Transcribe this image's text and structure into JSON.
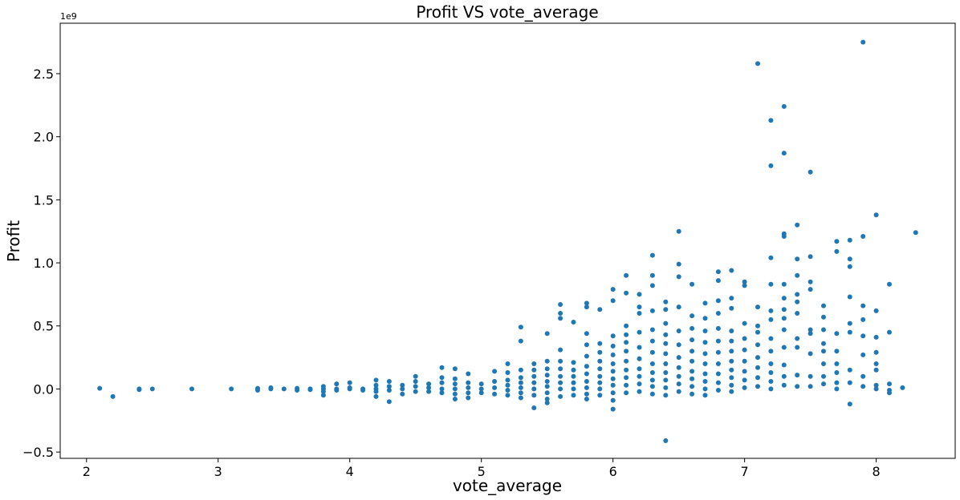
{
  "chart_data": {
    "type": "scatter",
    "title": "Profit VS vote_average",
    "xlabel": "vote_average",
    "ylabel": "Profit",
    "y_offset_label": "1e9",
    "xlim": [
      1.8,
      8.6
    ],
    "ylim": [
      -0.55,
      2.9
    ],
    "x_ticks": [
      2,
      3,
      4,
      5,
      6,
      7,
      8
    ],
    "x_tick_labels": [
      "2",
      "3",
      "4",
      "5",
      "6",
      "7",
      "8"
    ],
    "y_ticks": [
      -0.5,
      0.0,
      0.5,
      1.0,
      1.5,
      2.0,
      2.5
    ],
    "y_tick_labels": [
      "−0.5",
      "0.0",
      "0.5",
      "1.0",
      "1.5",
      "2.0",
      "2.5"
    ],
    "grid": false,
    "marker_color": "#1f77b4",
    "points": [
      [
        2.1,
        0.005
      ],
      [
        2.2,
        -0.06
      ],
      [
        2.4,
        -0.005
      ],
      [
        2.4,
        0.0
      ],
      [
        2.5,
        0.0
      ],
      [
        2.8,
        0.0
      ],
      [
        3.1,
        0.0
      ],
      [
        3.3,
        -0.01
      ],
      [
        3.3,
        0.005
      ],
      [
        3.4,
        0.0
      ],
      [
        3.4,
        0.01
      ],
      [
        3.5,
        0.0
      ],
      [
        3.6,
        -0.01
      ],
      [
        3.6,
        0.005
      ],
      [
        3.7,
        0.0
      ],
      [
        3.7,
        -0.005
      ],
      [
        3.8,
        -0.05
      ],
      [
        3.8,
        -0.02
      ],
      [
        3.8,
        0.0
      ],
      [
        3.8,
        0.02
      ],
      [
        3.9,
        0.04
      ],
      [
        3.9,
        0.0
      ],
      [
        3.9,
        -0.01
      ],
      [
        4.0,
        0.05
      ],
      [
        4.0,
        0.0
      ],
      [
        4.0,
        0.01
      ],
      [
        4.1,
        0.0
      ],
      [
        4.1,
        -0.01
      ],
      [
        4.2,
        0.07
      ],
      [
        4.2,
        0.03
      ],
      [
        4.2,
        0.0
      ],
      [
        4.2,
        -0.06
      ],
      [
        4.2,
        -0.02
      ],
      [
        4.3,
        0.06
      ],
      [
        4.3,
        0.02
      ],
      [
        4.3,
        -0.01
      ],
      [
        4.3,
        -0.1
      ],
      [
        4.4,
        0.03
      ],
      [
        4.4,
        0.0
      ],
      [
        4.4,
        -0.04
      ],
      [
        4.5,
        0.1
      ],
      [
        4.5,
        0.06
      ],
      [
        4.5,
        0.02
      ],
      [
        4.5,
        -0.02
      ],
      [
        4.6,
        0.04
      ],
      [
        4.6,
        0.01
      ],
      [
        4.6,
        -0.02
      ],
      [
        4.7,
        0.17
      ],
      [
        4.7,
        0.09
      ],
      [
        4.7,
        0.05
      ],
      [
        4.7,
        0.0
      ],
      [
        4.7,
        -0.03
      ],
      [
        4.8,
        0.16
      ],
      [
        4.8,
        0.08
      ],
      [
        4.8,
        0.04
      ],
      [
        4.8,
        0.0
      ],
      [
        4.8,
        -0.04
      ],
      [
        4.8,
        -0.08
      ],
      [
        4.9,
        0.12
      ],
      [
        4.9,
        0.05
      ],
      [
        4.9,
        0.01
      ],
      [
        4.9,
        -0.03
      ],
      [
        4.9,
        -0.07
      ],
      [
        5.0,
        0.04
      ],
      [
        5.0,
        0.0
      ],
      [
        5.0,
        -0.03
      ],
      [
        5.1,
        0.14
      ],
      [
        5.1,
        0.06
      ],
      [
        5.1,
        0.01
      ],
      [
        5.1,
        -0.04
      ],
      [
        5.2,
        0.2
      ],
      [
        5.2,
        0.13
      ],
      [
        5.2,
        0.07
      ],
      [
        5.2,
        0.03
      ],
      [
        5.2,
        -0.01
      ],
      [
        5.2,
        -0.05
      ],
      [
        5.3,
        0.49
      ],
      [
        5.3,
        0.38
      ],
      [
        5.3,
        0.15
      ],
      [
        5.3,
        0.09
      ],
      [
        5.3,
        0.05
      ],
      [
        5.3,
        0.01
      ],
      [
        5.3,
        -0.03
      ],
      [
        5.3,
        -0.07
      ],
      [
        5.4,
        0.2
      ],
      [
        5.4,
        0.15
      ],
      [
        5.4,
        0.1
      ],
      [
        5.4,
        0.05
      ],
      [
        5.4,
        0.0
      ],
      [
        5.4,
        -0.05
      ],
      [
        5.4,
        -0.15
      ],
      [
        5.5,
        0.44
      ],
      [
        5.5,
        0.22
      ],
      [
        5.5,
        0.16
      ],
      [
        5.5,
        0.11
      ],
      [
        5.5,
        0.06
      ],
      [
        5.5,
        0.02
      ],
      [
        5.5,
        -0.03
      ],
      [
        5.5,
        -0.08
      ],
      [
        5.5,
        -0.11
      ],
      [
        5.6,
        0.67
      ],
      [
        5.6,
        0.6
      ],
      [
        5.6,
        0.56
      ],
      [
        5.6,
        0.31
      ],
      [
        5.6,
        0.22
      ],
      [
        5.6,
        0.16
      ],
      [
        5.6,
        0.1
      ],
      [
        5.6,
        0.05
      ],
      [
        5.6,
        0.0
      ],
      [
        5.6,
        -0.06
      ],
      [
        5.7,
        0.53
      ],
      [
        5.7,
        0.21
      ],
      [
        5.7,
        0.15
      ],
      [
        5.7,
        0.1
      ],
      [
        5.7,
        0.05
      ],
      [
        5.7,
        0.0
      ],
      [
        5.7,
        -0.05
      ],
      [
        5.8,
        0.68
      ],
      [
        5.8,
        0.65
      ],
      [
        5.8,
        0.44
      ],
      [
        5.8,
        0.35
      ],
      [
        5.8,
        0.26
      ],
      [
        5.8,
        0.18
      ],
      [
        5.8,
        0.12
      ],
      [
        5.8,
        0.06
      ],
      [
        5.8,
        0.01
      ],
      [
        5.8,
        -0.04
      ],
      [
        5.8,
        -0.08
      ],
      [
        5.9,
        0.63
      ],
      [
        5.9,
        0.36
      ],
      [
        5.9,
        0.29
      ],
      [
        5.9,
        0.22
      ],
      [
        5.9,
        0.16
      ],
      [
        5.9,
        0.1
      ],
      [
        5.9,
        0.05
      ],
      [
        5.9,
        0.0
      ],
      [
        5.9,
        -0.05
      ],
      [
        6.0,
        0.79
      ],
      [
        6.0,
        0.7
      ],
      [
        6.0,
        0.42
      ],
      [
        6.0,
        0.34
      ],
      [
        6.0,
        0.27
      ],
      [
        6.0,
        0.2
      ],
      [
        6.0,
        0.14
      ],
      [
        6.0,
        0.08
      ],
      [
        6.0,
        0.03
      ],
      [
        6.0,
        -0.03
      ],
      [
        6.0,
        -0.09
      ],
      [
        6.0,
        -0.16
      ],
      [
        6.1,
        0.9
      ],
      [
        6.1,
        0.76
      ],
      [
        6.1,
        0.5
      ],
      [
        6.1,
        0.43
      ],
      [
        6.1,
        0.37
      ],
      [
        6.1,
        0.3
      ],
      [
        6.1,
        0.22
      ],
      [
        6.1,
        0.15
      ],
      [
        6.1,
        0.09
      ],
      [
        6.1,
        0.03
      ],
      [
        6.1,
        -0.03
      ],
      [
        6.2,
        0.75
      ],
      [
        6.2,
        0.65
      ],
      [
        6.2,
        0.6
      ],
      [
        6.2,
        0.45
      ],
      [
        6.2,
        0.33
      ],
      [
        6.2,
        0.24
      ],
      [
        6.2,
        0.16
      ],
      [
        6.2,
        0.1
      ],
      [
        6.2,
        0.04
      ],
      [
        6.2,
        -0.02
      ],
      [
        6.3,
        1.06
      ],
      [
        6.3,
        0.9
      ],
      [
        6.3,
        0.82
      ],
      [
        6.3,
        0.62
      ],
      [
        6.3,
        0.47
      ],
      [
        6.3,
        0.38
      ],
      [
        6.3,
        0.29
      ],
      [
        6.3,
        0.2
      ],
      [
        6.3,
        0.13
      ],
      [
        6.3,
        0.07
      ],
      [
        6.3,
        0.02
      ],
      [
        6.3,
        -0.04
      ],
      [
        6.4,
        0.69
      ],
      [
        6.4,
        0.63
      ],
      [
        6.4,
        0.52
      ],
      [
        6.4,
        0.43
      ],
      [
        6.4,
        0.36
      ],
      [
        6.4,
        0.28
      ],
      [
        6.4,
        0.2
      ],
      [
        6.4,
        0.13
      ],
      [
        6.4,
        0.07
      ],
      [
        6.4,
        0.01
      ],
      [
        6.4,
        -0.05
      ],
      [
        6.4,
        -0.41
      ],
      [
        6.5,
        1.25
      ],
      [
        6.5,
        0.99
      ],
      [
        6.5,
        0.89
      ],
      [
        6.5,
        0.65
      ],
      [
        6.5,
        0.46
      ],
      [
        6.5,
        0.35
      ],
      [
        6.5,
        0.25
      ],
      [
        6.5,
        0.17
      ],
      [
        6.5,
        0.1
      ],
      [
        6.5,
        0.04
      ],
      [
        6.5,
        -0.02
      ],
      [
        6.6,
        0.83
      ],
      [
        6.6,
        0.58
      ],
      [
        6.6,
        0.48
      ],
      [
        6.6,
        0.39
      ],
      [
        6.6,
        0.3
      ],
      [
        6.6,
        0.22
      ],
      [
        6.6,
        0.14
      ],
      [
        6.6,
        0.08
      ],
      [
        6.6,
        0.02
      ],
      [
        6.6,
        -0.04
      ],
      [
        6.7,
        0.68
      ],
      [
        6.7,
        0.56
      ],
      [
        6.7,
        0.46
      ],
      [
        6.7,
        0.37
      ],
      [
        6.7,
        0.28
      ],
      [
        6.7,
        0.2
      ],
      [
        6.7,
        0.12
      ],
      [
        6.7,
        0.06
      ],
      [
        6.7,
        0.0
      ],
      [
        6.7,
        -0.05
      ],
      [
        6.8,
        0.93
      ],
      [
        6.8,
        0.86
      ],
      [
        6.8,
        0.7
      ],
      [
        6.8,
        0.6
      ],
      [
        6.8,
        0.48
      ],
      [
        6.8,
        0.38
      ],
      [
        6.8,
        0.29
      ],
      [
        6.8,
        0.2
      ],
      [
        6.8,
        0.12
      ],
      [
        6.8,
        0.05
      ],
      [
        6.8,
        -0.01
      ],
      [
        6.9,
        0.94
      ],
      [
        6.9,
        0.72
      ],
      [
        6.9,
        0.64
      ],
      [
        6.9,
        0.46
      ],
      [
        6.9,
        0.38
      ],
      [
        6.9,
        0.3
      ],
      [
        6.9,
        0.22
      ],
      [
        6.9,
        0.15
      ],
      [
        6.9,
        0.09
      ],
      [
        6.9,
        0.03
      ],
      [
        6.9,
        -0.02
      ],
      [
        7.0,
        0.85
      ],
      [
        7.0,
        0.82
      ],
      [
        7.0,
        0.52
      ],
      [
        7.0,
        0.4
      ],
      [
        7.0,
        0.31
      ],
      [
        7.0,
        0.22
      ],
      [
        7.0,
        0.14
      ],
      [
        7.0,
        0.07
      ],
      [
        7.0,
        0.01
      ],
      [
        7.1,
        2.58
      ],
      [
        7.1,
        0.65
      ],
      [
        7.1,
        0.5
      ],
      [
        7.1,
        0.45
      ],
      [
        7.1,
        0.35
      ],
      [
        7.1,
        0.25
      ],
      [
        7.1,
        0.17
      ],
      [
        7.1,
        0.09
      ],
      [
        7.1,
        0.02
      ],
      [
        7.2,
        2.13
      ],
      [
        7.2,
        1.77
      ],
      [
        7.2,
        1.04
      ],
      [
        7.2,
        0.83
      ],
      [
        7.2,
        0.62
      ],
      [
        7.2,
        0.55
      ],
      [
        7.2,
        0.4
      ],
      [
        7.2,
        0.3
      ],
      [
        7.2,
        0.2
      ],
      [
        7.2,
        0.13
      ],
      [
        7.2,
        0.06
      ],
      [
        7.2,
        0.0
      ],
      [
        7.3,
        2.24
      ],
      [
        7.3,
        1.87
      ],
      [
        7.3,
        1.23
      ],
      [
        7.3,
        1.21
      ],
      [
        7.3,
        0.83
      ],
      [
        7.3,
        0.72
      ],
      [
        7.3,
        0.63
      ],
      [
        7.3,
        0.56
      ],
      [
        7.3,
        0.47
      ],
      [
        7.3,
        0.33
      ],
      [
        7.3,
        0.19
      ],
      [
        7.3,
        0.1
      ],
      [
        7.3,
        0.03
      ],
      [
        7.4,
        1.3
      ],
      [
        7.4,
        1.03
      ],
      [
        7.4,
        0.9
      ],
      [
        7.4,
        0.75
      ],
      [
        7.4,
        0.69
      ],
      [
        7.4,
        0.6
      ],
      [
        7.4,
        0.4
      ],
      [
        7.4,
        0.33
      ],
      [
        7.4,
        0.11
      ],
      [
        7.4,
        0.02
      ],
      [
        7.5,
        1.72
      ],
      [
        7.5,
        1.05
      ],
      [
        7.5,
        0.85
      ],
      [
        7.5,
        0.79
      ],
      [
        7.5,
        0.47
      ],
      [
        7.5,
        0.44
      ],
      [
        7.5,
        0.28
      ],
      [
        7.5,
        0.1
      ],
      [
        7.5,
        0.02
      ],
      [
        7.6,
        0.66
      ],
      [
        7.6,
        0.57
      ],
      [
        7.6,
        0.47
      ],
      [
        7.6,
        0.36
      ],
      [
        7.6,
        0.3
      ],
      [
        7.6,
        0.2
      ],
      [
        7.6,
        0.1
      ],
      [
        7.6,
        0.04
      ],
      [
        7.7,
        1.17
      ],
      [
        7.7,
        1.09
      ],
      [
        7.7,
        0.44
      ],
      [
        7.7,
        0.3
      ],
      [
        7.7,
        0.2
      ],
      [
        7.7,
        0.13
      ],
      [
        7.7,
        0.05
      ],
      [
        7.7,
        0.0
      ],
      [
        7.8,
        1.18
      ],
      [
        7.8,
        1.03
      ],
      [
        7.8,
        0.97
      ],
      [
        7.8,
        0.73
      ],
      [
        7.8,
        0.52
      ],
      [
        7.8,
        0.45
      ],
      [
        7.8,
        0.15
      ],
      [
        7.8,
        0.05
      ],
      [
        7.8,
        -0.12
      ],
      [
        7.9,
        2.75
      ],
      [
        7.9,
        1.21
      ],
      [
        7.9,
        0.66
      ],
      [
        7.9,
        0.55
      ],
      [
        7.9,
        0.42
      ],
      [
        7.9,
        0.27
      ],
      [
        7.9,
        0.1
      ],
      [
        7.9,
        0.02
      ],
      [
        8.0,
        1.38
      ],
      [
        8.0,
        0.62
      ],
      [
        8.0,
        0.41
      ],
      [
        8.0,
        0.29
      ],
      [
        8.0,
        0.2
      ],
      [
        8.0,
        0.15
      ],
      [
        8.0,
        0.03
      ],
      [
        8.0,
        0.0
      ],
      [
        8.1,
        0.83
      ],
      [
        8.1,
        0.45
      ],
      [
        8.1,
        0.04
      ],
      [
        8.1,
        -0.01
      ],
      [
        8.1,
        -0.03
      ],
      [
        8.2,
        0.01
      ],
      [
        8.3,
        1.24
      ]
    ]
  }
}
